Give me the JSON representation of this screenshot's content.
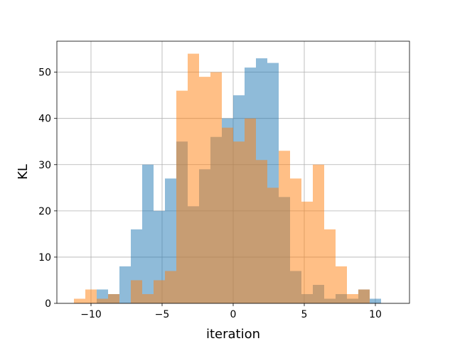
{
  "chart_data": {
    "type": "bar",
    "title": "",
    "xlabel": "iteration",
    "ylabel": "KL",
    "xlim": [
      -12.4,
      12.4
    ],
    "ylim": [
      0,
      56.7
    ],
    "xticks": [
      -10,
      -5,
      0,
      5,
      10
    ],
    "yticks": [
      0,
      10,
      20,
      30,
      40,
      50
    ],
    "xtick_labels": [
      "−10",
      "−5",
      "0",
      "5",
      "10"
    ],
    "ytick_labels": [
      "0",
      "10",
      "20",
      "30",
      "40",
      "50"
    ],
    "grid": true,
    "legend": "none",
    "series": [
      {
        "color": "#1f77b4",
        "alpha": 0.5,
        "bin_edges": [
          -9.6,
          -8.8,
          -8.0,
          -7.2,
          -6.4,
          -5.6,
          -4.8,
          -4.0,
          -3.2,
          -2.4,
          -1.6,
          -0.8,
          0.0,
          0.8,
          1.6,
          2.4,
          3.2,
          4.0,
          4.8,
          5.6,
          6.4,
          7.2,
          8.0,
          8.8,
          9.6,
          10.4,
          11.2
        ],
        "counts": [
          3,
          2,
          8,
          16,
          30,
          20,
          27,
          35,
          21,
          29,
          36,
          40,
          45,
          51,
          53,
          52,
          23,
          7,
          2,
          4,
          1,
          2,
          1,
          3,
          1,
          0
        ]
      },
      {
        "color": "#ff7f0e",
        "alpha": 0.5,
        "bin_edges": [
          -11.2,
          -10.4,
          -9.6,
          -8.8,
          -8.0,
          -7.2,
          -6.4,
          -5.6,
          -4.8,
          -4.0,
          -3.2,
          -2.4,
          -1.6,
          -0.8,
          0.0,
          0.8,
          1.6,
          2.4,
          3.2,
          4.0,
          4.8,
          5.6,
          6.4,
          7.2,
          8.0,
          8.8,
          9.6
        ],
        "counts": [
          1,
          3,
          1,
          2,
          0,
          5,
          2,
          5,
          7,
          46,
          54,
          49,
          50,
          38,
          35,
          40,
          31,
          25,
          33,
          27,
          22,
          30,
          16,
          8,
          2,
          3
        ]
      }
    ]
  }
}
